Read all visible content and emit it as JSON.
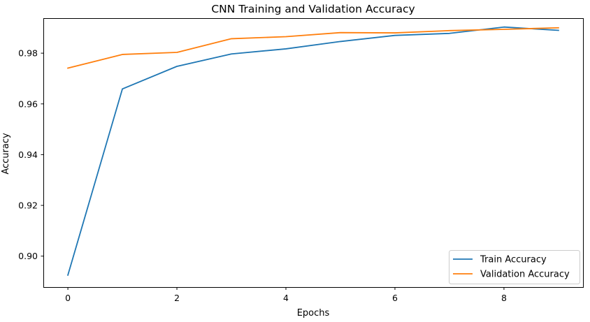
{
  "chart_data": {
    "type": "line",
    "title": "CNN Training and Validation Accuracy",
    "xlabel": "Epochs",
    "ylabel": "Accuracy",
    "x": [
      0,
      1,
      2,
      3,
      4,
      5,
      6,
      7,
      8,
      9
    ],
    "xlim": [
      -0.45,
      9.45
    ],
    "ylim": [
      0.8878,
      0.9938
    ],
    "xticks": [
      0,
      2,
      4,
      6,
      8
    ],
    "yticks": [
      0.9,
      0.92,
      0.94,
      0.96,
      0.98
    ],
    "xtick_labels": [
      "0",
      "2",
      "4",
      "6",
      "8"
    ],
    "ytick_labels": [
      "0.90",
      "0.92",
      "0.94",
      "0.96",
      "0.98"
    ],
    "grid": false,
    "legend_position": "lower-right",
    "series": [
      {
        "name": "Train Accuracy",
        "color": "#1f77b4",
        "values": [
          0.8925,
          0.9659,
          0.9748,
          0.9797,
          0.9817,
          0.9846,
          0.987,
          0.9878,
          0.9903,
          0.989
        ]
      },
      {
        "name": "Validation Accuracy",
        "color": "#ff7f0e",
        "values": [
          0.9741,
          0.9795,
          0.9803,
          0.9857,
          0.9865,
          0.9881,
          0.988,
          0.9889,
          0.9894,
          0.99
        ]
      }
    ]
  }
}
